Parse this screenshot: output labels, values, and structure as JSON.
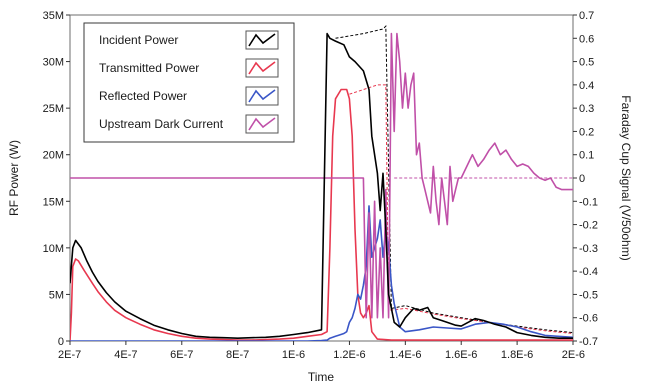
{
  "chart_data": {
    "type": "line",
    "xlabel": "Time",
    "ylabel": "RF Power (W)",
    "y2label": "Faraday Cup Signal (V/50ohm)",
    "xlim": [
      2e-07,
      2e-06
    ],
    "ylim": [
      0,
      35000000
    ],
    "y2lim": [
      -0.7,
      0.7
    ],
    "grid": false,
    "legend_position": "top-left",
    "x_ticks": [
      2e-07,
      4e-07,
      6e-07,
      8e-07,
      1e-06,
      1.2e-06,
      1.4e-06,
      1.6e-06,
      1.8e-06,
      2e-06
    ],
    "x_tick_labels": [
      "2E-7",
      "4E-7",
      "6E-7",
      "8E-7",
      "1E-6",
      "1.2E-6",
      "1.4E-6",
      "1.6E-6",
      "1.8E-6",
      "2E-6"
    ],
    "y_ticks": [
      0,
      5000000,
      10000000,
      15000000,
      20000000,
      25000000,
      30000000,
      35000000
    ],
    "y_tick_labels": [
      "0",
      "5M",
      "10M",
      "15M",
      "20M",
      "25M",
      "30M",
      "35M"
    ],
    "y2_ticks": [
      -0.7,
      -0.6,
      -0.5,
      -0.4,
      -0.3,
      -0.2,
      -0.1,
      0,
      0.1,
      0.2,
      0.3,
      0.4,
      0.5,
      0.6,
      0.7
    ],
    "y2_tick_labels": [
      "-0.7",
      "-0.6",
      "-0.5",
      "-0.4",
      "-0.3",
      "-0.2",
      "-0.1",
      "0",
      "0.1",
      "0.2",
      "0.3",
      "0.4",
      "0.5",
      "0.6",
      "0.7"
    ],
    "series": [
      {
        "name": "Incident Power",
        "color": "#000000",
        "axis": "left",
        "x": [
          2e-07,
          2.1e-07,
          2.2e-07,
          2.4e-07,
          2.6e-07,
          2.8e-07,
          3e-07,
          3.3e-07,
          3.6e-07,
          4e-07,
          4.5e-07,
          5e-07,
          5.5e-07,
          6e-07,
          6.5e-07,
          7e-07,
          7.5e-07,
          8e-07,
          8.5e-07,
          9e-07,
          9.5e-07,
          1e-06,
          1.05e-06,
          1.1e-06,
          1.12e-06,
          1.13e-06,
          1.15e-06,
          1.18e-06,
          1.2e-06,
          1.22e-06,
          1.25e-06,
          1.27e-06,
          1.28e-06,
          1.3e-06,
          1.31e-06,
          1.32e-06,
          1.33e-06,
          1.34e-06,
          1.36e-06,
          1.38e-06,
          1.4e-06,
          1.43e-06,
          1.45e-06,
          1.48e-06,
          1.5e-06,
          1.53e-06,
          1.55e-06,
          1.58e-06,
          1.6e-06,
          1.65e-06,
          1.68e-06,
          1.72e-06,
          1.76e-06,
          1.8e-06,
          1.85e-06,
          1.9e-06,
          1.95e-06,
          2e-06
        ],
        "values": [
          6200000,
          10000000,
          10800000,
          10000000,
          8600000,
          7400000,
          6400000,
          5200000,
          4200000,
          3200000,
          2400000,
          1700000,
          1200000,
          800000,
          500000,
          400000,
          350000,
          300000,
          350000,
          400000,
          500000,
          700000,
          900000,
          1200000,
          33000000,
          32500000,
          32200000,
          31800000,
          30500000,
          30000000,
          29000000,
          27000000,
          22000000,
          18000000,
          14000000,
          18000000,
          12000000,
          5000000,
          2000000,
          1500000,
          2500000,
          3500000,
          3300000,
          3600000,
          2500000,
          2200000,
          2000000,
          1700000,
          1600000,
          2400000,
          2200000,
          1800000,
          1500000,
          900000,
          600000,
          400000,
          300000,
          300000
        ]
      },
      {
        "name": "Transmitted Power",
        "color": "#e8384f",
        "axis": "left",
        "x": [
          2e-07,
          2.05e-07,
          2.1e-07,
          2.2e-07,
          2.3e-07,
          2.5e-07,
          2.8e-07,
          3e-07,
          3.3e-07,
          3.6e-07,
          4e-07,
          4.5e-07,
          5e-07,
          5.5e-07,
          6e-07,
          6.5e-07,
          7e-07,
          7.5e-07,
          8e-07,
          8.5e-07,
          9e-07,
          9.5e-07,
          1e-06,
          1.05e-06,
          1.1e-06,
          1.12e-06,
          1.13e-06,
          1.14e-06,
          1.15e-06,
          1.17e-06,
          1.18e-06,
          1.19e-06,
          1.2e-06,
          1.21e-06,
          1.22e-06,
          1.23e-06,
          1.24e-06,
          1.25e-06,
          1.26e-06,
          1.27e-06,
          1.28e-06,
          1.3e-06,
          1.35e-06,
          1.4e-06,
          1.5e-06,
          1.6e-06,
          1.7e-06,
          1.8e-06,
          1.9e-06,
          2e-06
        ],
        "values": [
          0,
          3000000,
          8000000,
          8800000,
          8600000,
          7600000,
          6200000,
          5300000,
          4200000,
          3300000,
          2500000,
          1800000,
          1200000,
          800000,
          500000,
          300000,
          200000,
          150000,
          100000,
          100000,
          150000,
          200000,
          300000,
          500000,
          700000,
          1000000,
          10000000,
          22000000,
          26000000,
          27000000,
          27000000,
          27000000,
          26000000,
          22000000,
          12000000,
          5000000,
          3000000,
          2500000,
          3000000,
          3800000,
          1000000,
          200000,
          100000,
          100000,
          100000,
          100000,
          100000,
          100000,
          100000,
          100000
        ]
      },
      {
        "name": "Reflected Power",
        "color": "#3a56c7",
        "axis": "left",
        "x": [
          2e-07,
          3e-07,
          4e-07,
          5e-07,
          6e-07,
          7e-07,
          8e-07,
          9e-07,
          1e-06,
          1.05e-06,
          1.1e-06,
          1.12e-06,
          1.13e-06,
          1.14e-06,
          1.15e-06,
          1.16e-06,
          1.18e-06,
          1.19e-06,
          1.2e-06,
          1.21e-06,
          1.22e-06,
          1.23e-06,
          1.24e-06,
          1.25e-06,
          1.26e-06,
          1.27e-06,
          1.28e-06,
          1.3e-06,
          1.31e-06,
          1.32e-06,
          1.33e-06,
          1.34e-06,
          1.35e-06,
          1.36e-06,
          1.38e-06,
          1.4e-06,
          1.45e-06,
          1.5e-06,
          1.55e-06,
          1.6e-06,
          1.65e-06,
          1.7e-06,
          1.75e-06,
          1.8e-06,
          1.85e-06,
          1.9e-06,
          2e-06
        ],
        "values": [
          0,
          0,
          0,
          0,
          0,
          0,
          0,
          0,
          0,
          0,
          50000,
          100000,
          300000,
          400000,
          500000,
          600000,
          800000,
          1000000,
          2000000,
          2500000,
          3500000,
          5000000,
          4500000,
          6000000,
          8000000,
          14500000,
          9000000,
          11000000,
          13000000,
          9000000,
          12000000,
          10000000,
          6000000,
          4000000,
          1500000,
          1000000,
          1200000,
          1500000,
          1400000,
          1300000,
          1800000,
          2000000,
          1800000,
          1500000,
          1000000,
          600000,
          400000
        ]
      },
      {
        "name": "Upstream Dark Current",
        "color": "#c050a8",
        "axis": "right",
        "x": [
          2e-07,
          1.2e-06,
          1.25e-06,
          1.26e-06,
          1.27e-06,
          1.28e-06,
          1.29e-06,
          1.3e-06,
          1.31e-06,
          1.32e-06,
          1.33e-06,
          1.34e-06,
          1.345e-06,
          1.35e-06,
          1.36e-06,
          1.37e-06,
          1.38e-06,
          1.39e-06,
          1.4e-06,
          1.41e-06,
          1.42e-06,
          1.43e-06,
          1.44e-06,
          1.45e-06,
          1.46e-06,
          1.47e-06,
          1.48e-06,
          1.49e-06,
          1.5e-06,
          1.51e-06,
          1.52e-06,
          1.53e-06,
          1.54e-06,
          1.55e-06,
          1.56e-06,
          1.57e-06,
          1.58e-06,
          1.59e-06,
          1.6e-06,
          1.62e-06,
          1.64e-06,
          1.66e-06,
          1.68e-06,
          1.7e-06,
          1.72e-06,
          1.74e-06,
          1.76e-06,
          1.78e-06,
          1.8e-06,
          1.82e-06,
          1.84e-06,
          1.86e-06,
          1.88e-06,
          1.9e-06,
          1.92e-06,
          1.94e-06,
          1.96e-06,
          1.98e-06,
          2e-06
        ],
        "values": [
          0,
          0,
          0,
          -0.6,
          -0.15,
          -0.6,
          -0.1,
          -0.6,
          -0.3,
          -0.6,
          -0.05,
          -0.6,
          0.0,
          0.62,
          0.2,
          0.62,
          0.5,
          0.3,
          0.45,
          0.3,
          0.4,
          0.45,
          0.1,
          0.15,
          0.0,
          -0.05,
          -0.1,
          -0.15,
          0.05,
          -0.1,
          -0.2,
          0.0,
          -0.1,
          -0.2,
          0.05,
          -0.1,
          -0.05,
          0.0,
          0.0,
          0.05,
          0.1,
          0.05,
          0.08,
          0.12,
          0.15,
          0.1,
          0.12,
          0.08,
          0.05,
          0.06,
          0.05,
          0.02,
          0.0,
          -0.01,
          0.0,
          -0.04,
          -0.05,
          -0.05,
          -0.05
        ]
      }
    ],
    "reference_lines": [
      {
        "style": "dashed",
        "color": "#000000",
        "axis": "left",
        "x": [
          1.15e-06,
          1.25e-06,
          1.32e-06,
          1.33e-06,
          1.35e-06,
          1.4e-06,
          1.5e-06,
          1.6e-06,
          1.7e-06,
          1.8e-06,
          1.9e-06,
          2e-06
        ],
        "values": [
          32500000,
          33000000,
          33500000,
          33800000,
          3500000,
          3800000,
          3000000,
          2500000,
          2000000,
          1600000,
          1200000,
          900000
        ]
      },
      {
        "style": "dashed",
        "color": "#e8384f",
        "axis": "left",
        "x": [
          1.2e-06,
          1.3e-06,
          1.33e-06,
          1.34e-06,
          1.4e-06,
          1.5e-06,
          1.6e-06,
          1.7e-06,
          1.8e-06,
          1.9e-06,
          2e-06
        ],
        "values": [
          26500000,
          27500000,
          27500000,
          3300000,
          3500000,
          2900000,
          2400000,
          2000000,
          1500000,
          1100000,
          800000
        ]
      },
      {
        "style": "dashed",
        "color": "#c050a8",
        "axis": "right",
        "x": [
          1.36e-06,
          2e-06
        ],
        "values": [
          0,
          0
        ]
      }
    ]
  }
}
